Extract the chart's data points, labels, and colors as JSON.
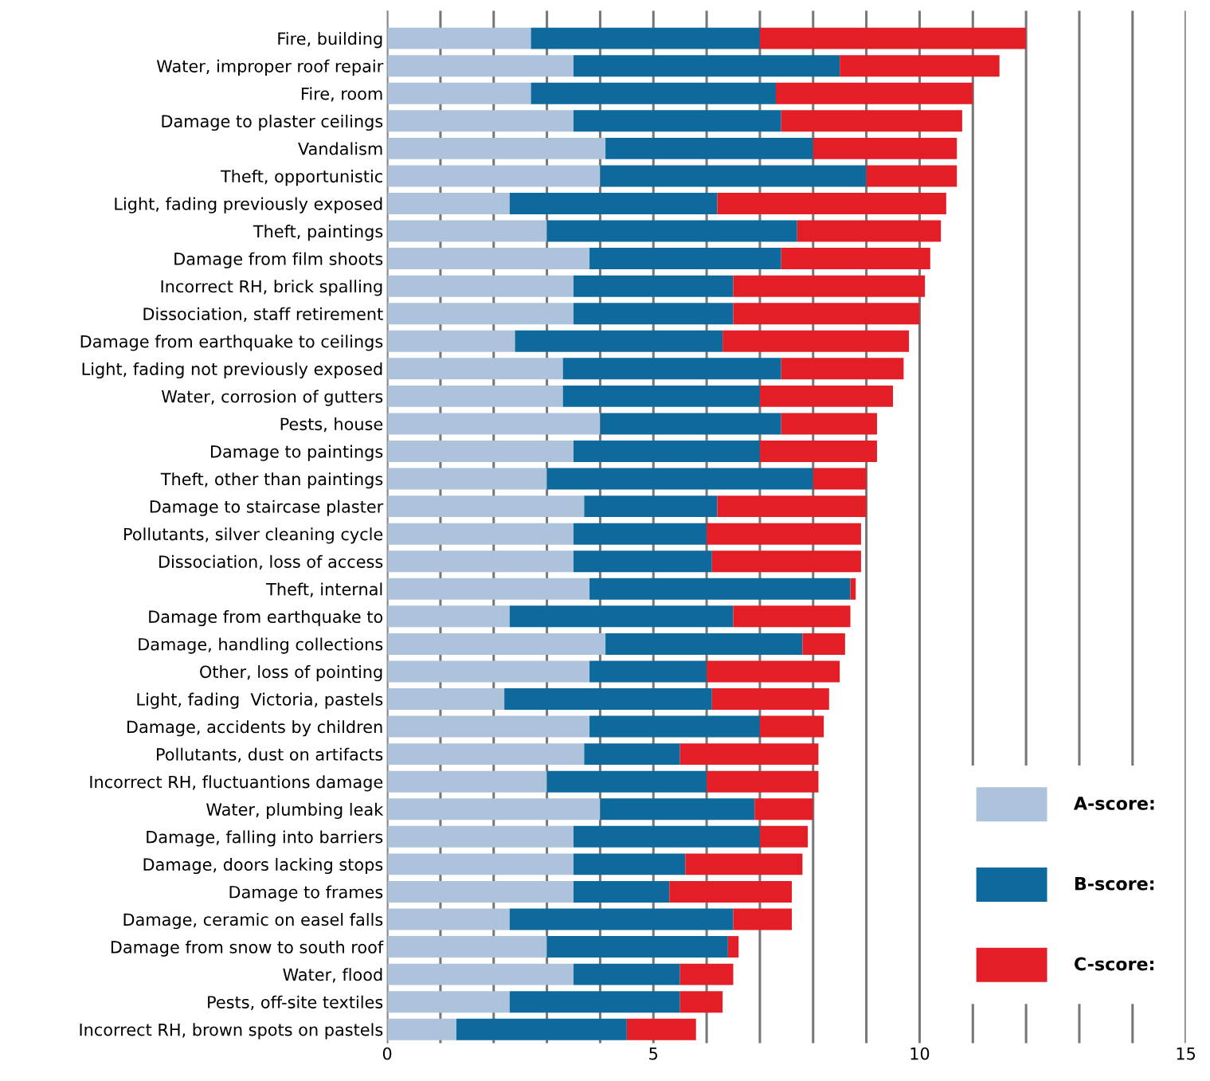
{
  "chart_data": {
    "type": "bar",
    "orientation": "horizontal",
    "stacked": true,
    "categories": [
      "Fire, building",
      "Water, improper roof repair",
      "Fire, room",
      "Damage to plaster ceilings",
      "Vandalism",
      "Theft, opportunistic",
      "Light, fading previously exposed",
      "Theft, paintings",
      "Damage from film shoots",
      "Incorrect RH, brick spalling",
      "Dissociation, staff retirement",
      "Damage from earthquake to ceilings",
      "Light, fading not previously exposed",
      "Water, corrosion of gutters",
      "Pests, house",
      "Damage to paintings",
      "Theft, other than paintings",
      "Damage to staircase plaster",
      "Pollutants, silver cleaning cycle",
      "Dissociation, loss of access",
      "Theft, internal",
      "Damage from earthquake to",
      "Damage, handling collections",
      "Other, loss of pointing",
      "Light, fading  Victoria, pastels",
      "Damage, accidents by children",
      "Pollutants, dust on artifacts",
      "Incorrect RH, fluctuantions damage",
      "Water, plumbing leak",
      "Damage, falling into barriers",
      "Damage, doors lacking stops",
      "Damage to frames",
      "Damage, ceramic on easel falls",
      "Damage from snow to south roof",
      "Water, flood",
      "Pests, off-site textiles",
      "Incorrect RH, brown spots on pastels"
    ],
    "series": [
      {
        "name": "A-score:",
        "color": "#adc3dc",
        "values": [
          2.7,
          3.5,
          2.7,
          3.5,
          4.1,
          4.0,
          2.3,
          3.0,
          3.8,
          3.5,
          3.5,
          2.4,
          3.3,
          3.3,
          4.0,
          3.5,
          3.0,
          3.7,
          3.5,
          3.5,
          3.8,
          2.3,
          4.1,
          3.8,
          2.2,
          3.8,
          3.7,
          3.0,
          4.0,
          3.5,
          3.5,
          3.5,
          2.3,
          3.0,
          3.5,
          2.3,
          1.3
        ]
      },
      {
        "name": "B-score:",
        "color": "#0e6a9c",
        "values": [
          4.3,
          5.0,
          4.6,
          3.9,
          3.9,
          5.0,
          3.9,
          4.7,
          3.6,
          3.0,
          3.0,
          3.9,
          4.1,
          3.7,
          3.4,
          3.5,
          5.0,
          2.5,
          2.5,
          2.6,
          4.9,
          4.2,
          3.7,
          2.2,
          3.9,
          3.2,
          1.8,
          3.0,
          2.9,
          3.5,
          2.1,
          1.8,
          4.2,
          3.4,
          2.0,
          3.2,
          3.2
        ]
      },
      {
        "name": "C-score:",
        "color": "#e31e26",
        "values": [
          5.0,
          3.0,
          3.7,
          3.4,
          2.7,
          1.7,
          4.3,
          2.7,
          2.8,
          3.6,
          3.5,
          3.5,
          2.3,
          2.5,
          1.8,
          2.2,
          1.0,
          2.8,
          2.9,
          2.8,
          0.1,
          2.2,
          0.8,
          2.5,
          2.2,
          1.2,
          2.6,
          2.1,
          1.1,
          0.9,
          2.2,
          2.3,
          1.1,
          0.2,
          1.0,
          0.8,
          1.3
        ]
      }
    ],
    "xlim": [
      0,
      15
    ],
    "xticks": [
      0,
      {
        "value": 1,
        "label": null
      },
      {
        "value": 2,
        "label": null
      },
      {
        "value": 3,
        "label": null
      },
      {
        "value": 4,
        "label": null
      },
      5,
      {
        "value": 6,
        "label": null
      },
      {
        "value": 7,
        "label": null
      },
      {
        "value": 8,
        "label": null
      },
      {
        "value": 9,
        "label": null
      },
      10,
      {
        "value": 11,
        "label": null
      },
      {
        "value": 12,
        "label": null
      },
      {
        "value": 13,
        "label": null
      },
      {
        "value": 14,
        "label": null
      },
      15
    ],
    "grid": "x",
    "legend": "bottom right"
  }
}
